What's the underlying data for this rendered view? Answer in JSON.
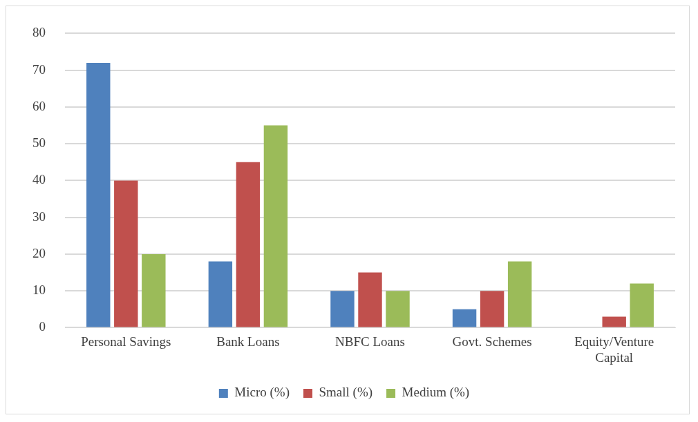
{
  "chart_data": {
    "type": "bar",
    "categories": [
      "Personal Savings",
      "Bank Loans",
      "NBFC Loans",
      "Govt. Schemes",
      "Equity/Venture Capital"
    ],
    "series": [
      {
        "name": "Micro (%)",
        "color": "#4f81bd",
        "values": [
          72,
          18,
          10,
          5,
          0
        ]
      },
      {
        "name": "Small (%)",
        "color": "#c0504d",
        "values": [
          40,
          45,
          15,
          10,
          3
        ]
      },
      {
        "name": "Medium (%)",
        "color": "#9bbb59",
        "values": [
          20,
          55,
          10,
          18,
          12
        ]
      }
    ],
    "ylim": [
      0,
      80
    ],
    "yticks": [
      0,
      10,
      20,
      30,
      40,
      50,
      60,
      70,
      80
    ],
    "grid": "y",
    "legend": "bottom"
  }
}
